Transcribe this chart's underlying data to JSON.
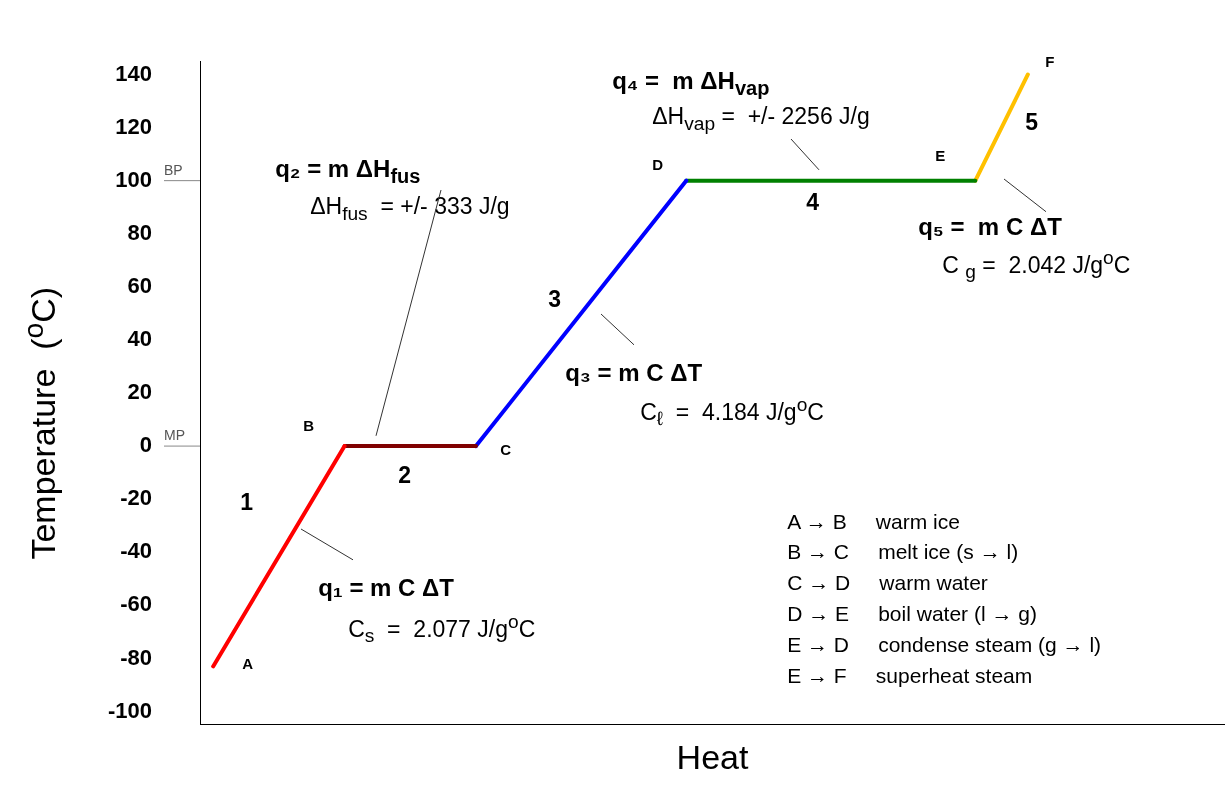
{
  "chart_data": {
    "type": "line",
    "xlabel": "Heat",
    "ylabel": "Temperature  ($^{o}$C)",
    "categories": [
      null,
      null,
      null,
      null,
      null,
      null,
      null,
      null,
      null,
      null,
      null,
      null,
      null,
      null,
      null,
      null,
      null,
      null,
      null,
      null,
      null,
      null,
      null,
      null,
      null,
      null,
      null,
      null,
      null,
      null,
      null,
      null,
      null,
      null,
      null,
      null,
      null,
      null,
      null
    ],
    "series": [
      {
        "color": "#ff0000",
        "values": [
          -83,
          null,
          null,
          null,
          null,
          0,
          null,
          null,
          null,
          null,
          null,
          null,
          null,
          null,
          null,
          null,
          null,
          null,
          null,
          null,
          null,
          null,
          null,
          null,
          null,
          null,
          null,
          null,
          null,
          null,
          null,
          null,
          null,
          null,
          null,
          null,
          null,
          null,
          null
        ]
      },
      {
        "color": "#800000",
        "values": [
          null,
          null,
          null,
          null,
          null,
          0,
          null,
          null,
          null,
          null,
          0,
          null,
          null,
          null,
          null,
          null,
          null,
          null,
          null,
          null,
          null,
          null,
          null,
          null,
          null,
          null,
          null,
          null,
          null,
          null,
          null,
          null,
          null,
          null,
          null,
          null,
          null,
          null,
          null
        ]
      },
      {
        "color": "#0000ff",
        "values": [
          null,
          null,
          null,
          null,
          null,
          null,
          null,
          null,
          null,
          null,
          0,
          null,
          null,
          null,
          null,
          null,
          null,
          null,
          100,
          null,
          null,
          null,
          null,
          null,
          null,
          null,
          null,
          null,
          null,
          null,
          null,
          null,
          null,
          null,
          null,
          null,
          null,
          null,
          null
        ]
      },
      {
        "color": "#008000",
        "values": [
          null,
          null,
          null,
          null,
          null,
          null,
          null,
          null,
          null,
          null,
          null,
          null,
          null,
          null,
          null,
          null,
          null,
          null,
          100,
          null,
          null,
          null,
          null,
          null,
          null,
          null,
          null,
          null,
          null,
          100,
          null,
          null,
          null,
          null,
          null,
          null,
          null,
          null,
          null
        ]
      },
      {
        "color": "#ffc000",
        "values": [
          null,
          null,
          null,
          null,
          null,
          null,
          null,
          null,
          null,
          null,
          null,
          null,
          null,
          null,
          null,
          null,
          null,
          null,
          null,
          null,
          null,
          null,
          null,
          null,
          null,
          null,
          null,
          null,
          null,
          100,
          null,
          140,
          null,
          null,
          null,
          null,
          null,
          null,
          null
        ]
      }
    ],
    "ylim": [
      -105,
      145
    ],
    "yticks": [
      -100,
      -80,
      -60,
      -40,
      -20,
      0,
      20,
      40,
      60,
      80,
      100,
      120,
      140
    ],
    "tick_labels": "y",
    "marker": "none",
    "line_style": "solid",
    "ref_lines": [
      {
        "axis": "y",
        "value": 100,
        "label": "BP"
      },
      {
        "axis": "y",
        "value": 0,
        "label": "MP"
      }
    ],
    "annotations": [
      "q₁ = m C ΔT",
      "C$_{s}$  =  2.077 J/g$^{o}$C",
      "q₂ = m ΔH$_{fus}$",
      "ΔH$_{fus}$  = +/- 333 J/g",
      "q₃ = m C ΔT",
      "C$_{ℓ}$  =  4.184 J/g$^{o}$C",
      "q₄ =  m ΔH$_{vap}$",
      "ΔH$_{vap}$ =  +/- 2256 J/g",
      "q₅ =  m C ΔT",
      "C $_{g}$ =  2.042 J/g$^{o}$C",
      "A → B     warm ice",
      "B → C     melt ice (s → l)",
      "C → D     warm water",
      "D → E     boil water (l → g)",
      "E → D     condense steam (g → l)",
      "E → F     superheat steam",
      "1",
      "2",
      "3",
      "4",
      "5",
      "A",
      "B",
      "C",
      "D",
      "E",
      "F"
    ]
  }
}
